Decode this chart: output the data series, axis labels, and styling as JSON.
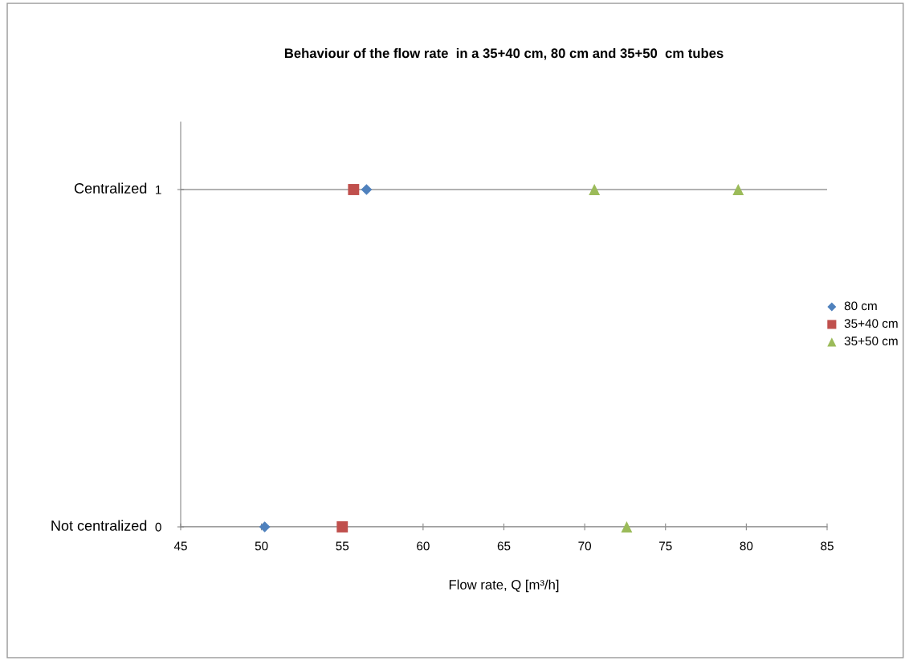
{
  "chart_data": {
    "type": "scatter",
    "title": "Behaviour of the flow rate  in a 35+40 cm, 80 cm and 35+50  cm tubes",
    "xlabel": "Flow rate, Q [m³/h]",
    "series": [
      {
        "name": "80 cm",
        "color": "#4f81bd",
        "marker": "diamond",
        "x": [
          50.2,
          56.5
        ],
        "values": [
          0,
          1
        ]
      },
      {
        "name": "35+40 cm",
        "color": "#c0504d",
        "marker": "square",
        "x": [
          55.0,
          55.7
        ],
        "values": [
          0,
          1
        ]
      },
      {
        "name": "35+50 cm",
        "color": "#9bbb59",
        "marker": "triangle",
        "x": [
          72.6,
          70.6,
          79.5
        ],
        "values": [
          0,
          1,
          1
        ]
      }
    ],
    "xlim": [
      45,
      85
    ],
    "xticks": [
      45,
      50,
      55,
      60,
      65,
      70,
      75,
      80,
      85
    ],
    "ylim": [
      0,
      1.2
    ],
    "yticks": [
      0,
      1
    ],
    "annotations": [
      "Not centralized",
      "Centralized"
    ],
    "grid": "y",
    "legend": "right"
  }
}
